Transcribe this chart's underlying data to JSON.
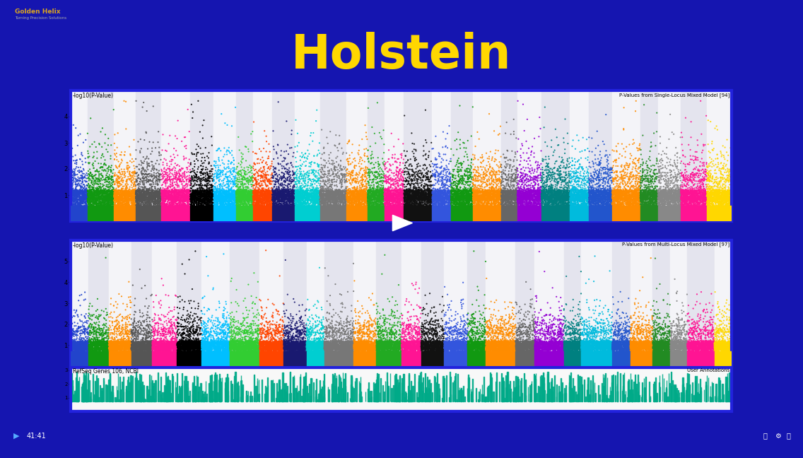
{
  "title": "Holstein",
  "title_color": "#FFD700",
  "title_fontsize": 48,
  "bg_color": "#1515b0",
  "plot_bg_light": "#f4f4f8",
  "plot_bg_dark": "#e4e4ee",
  "top_label": "-log10(P-Value)",
  "top_right_label1": "P-Values from Single-Locus Mixed Model [94]",
  "top_right_label2": "P-Values from Multi-Locus Mixed Model [97]",
  "bottom_left_label": "RefSeq Genes 106, NCBI",
  "bottom_right_label": "User Annotations",
  "chr_colors": [
    "#2244cc",
    "#119911",
    "#FF8C00",
    "#555555",
    "#FF1493",
    "#000000",
    "#00BFFF",
    "#32CD32",
    "#FF4500",
    "#191970",
    "#00CED1",
    "#777777",
    "#FF8C00",
    "#22aa22",
    "#FF1493",
    "#111111",
    "#3355dd",
    "#119911",
    "#FF8C00",
    "#666666",
    "#9400D3",
    "#008080",
    "#00BBDD",
    "#2255cc",
    "#FF8C00",
    "#228B22",
    "#888888",
    "#FF1493",
    "#FFD700"
  ],
  "n_chromosomes": 29,
  "n_points_per_chr": 1200,
  "seed": 7,
  "ylim1": [
    0,
    5
  ],
  "ylim2": [
    0,
    6
  ],
  "yticks1": [
    1,
    2,
    3,
    4
  ],
  "yticks2": [
    1,
    2,
    3,
    4,
    5
  ],
  "gene_track_color": "#00AA88",
  "gene_track_bg": "#f8f8f8",
  "border_color": "#2222dd",
  "border_width": 3,
  "play_button_color": "#87CEEB",
  "play_button_alpha": 0.82,
  "video_bar_color": "#0a0a50",
  "video_bar_lower": "#1a3a99",
  "progress_color": "#1a3a99",
  "time_text": "41:41",
  "logo_text": "Golden Helix",
  "logo_subtitle": "Turning Precision Solutions",
  "logo_color": "#DAA520",
  "logo_bg": "#050510"
}
